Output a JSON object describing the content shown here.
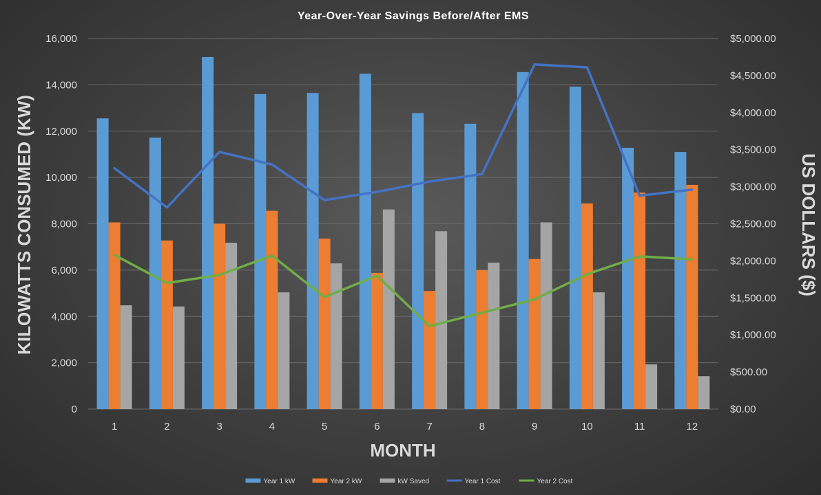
{
  "chart_data": {
    "type": "bar",
    "title": "Year-Over-Year  Savings  Before/After  EMS",
    "xlabel": "MONTH",
    "ylabel": "KILOWATTS CONSUMED (KW)",
    "y2label": "US DOLLARS ($)",
    "categories": [
      "1",
      "2",
      "3",
      "4",
      "5",
      "6",
      "7",
      "8",
      "9",
      "10",
      "11",
      "12"
    ],
    "ylim": [
      0,
      16000
    ],
    "y_ticks": [
      0,
      2000,
      4000,
      6000,
      8000,
      10000,
      12000,
      14000,
      16000
    ],
    "y_tick_labels": [
      "0",
      "2,000",
      "4,000",
      "6,000",
      "8,000",
      "10,000",
      "12,000",
      "14,000",
      "16,000"
    ],
    "y2lim": [
      0,
      5000
    ],
    "y2_ticks": [
      0,
      500,
      1000,
      1500,
      2000,
      2500,
      3000,
      3500,
      4000,
      4500,
      5000
    ],
    "y2_tick_labels": [
      "$0.00",
      "$500.00",
      "$1,000.00",
      "$1,500.00",
      "$2,000.00",
      "$2,500.00",
      "$3,000.00",
      "$3,500.00",
      "$4,000.00",
      "$4,500.00",
      "$5,000.00"
    ],
    "grid": true,
    "legend_position": "bottom",
    "series": [
      {
        "name": "Year 1 kW",
        "kind": "bar",
        "axis": "left",
        "color": "#5b9bd5",
        "values": [
          12550,
          11720,
          15200,
          13600,
          13650,
          14480,
          12780,
          12320,
          14550,
          13920,
          11280,
          11100
        ]
      },
      {
        "name": "Year 2  kW",
        "kind": "bar",
        "axis": "left",
        "color": "#ed7d31",
        "values": [
          8060,
          7280,
          8000,
          8560,
          7360,
          5880,
          5100,
          6000,
          6480,
          8880,
          9350,
          9680
        ]
      },
      {
        "name": "kW Saved",
        "kind": "bar",
        "axis": "left",
        "color": "#a5a5a5",
        "values": [
          4480,
          4430,
          7180,
          5040,
          6290,
          8620,
          7680,
          6320,
          8060,
          5040,
          1930,
          1420
        ]
      },
      {
        "name": "Year 1 Cost",
        "kind": "line",
        "axis": "right",
        "color": "#4472c4",
        "values": [
          3250,
          2720,
          3470,
          3300,
          2820,
          2930,
          3070,
          3170,
          4650,
          4610,
          2880,
          2960
        ]
      },
      {
        "name": "Year 2 Cost",
        "kind": "line",
        "axis": "right",
        "color": "#70ad47",
        "values": [
          2080,
          1700,
          1810,
          2070,
          1510,
          1800,
          1120,
          1300,
          1480,
          1820,
          2060,
          2020
        ]
      }
    ]
  }
}
